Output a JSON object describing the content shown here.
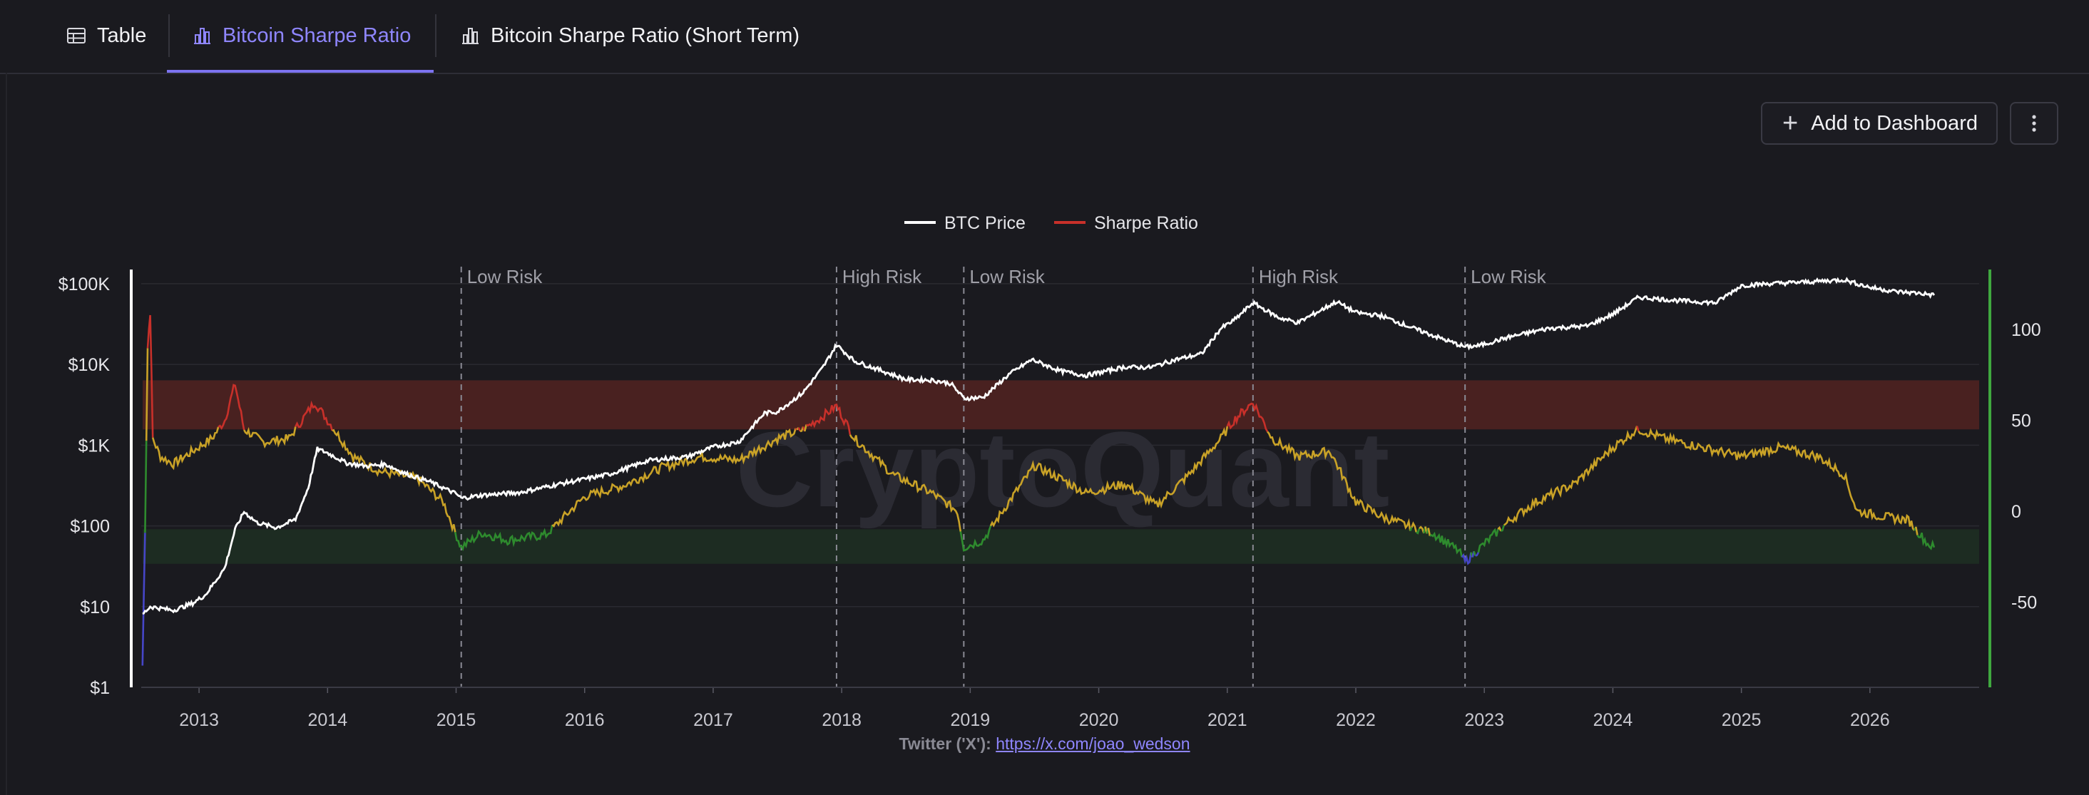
{
  "tabs": [
    {
      "label": "Table",
      "icon": "table-icon"
    },
    {
      "label": "Bitcoin Sharpe Ratio",
      "icon": "bar-chart-icon",
      "active": true
    },
    {
      "label": "Bitcoin Sharpe Ratio (Short Term)",
      "icon": "bar-chart-icon"
    }
  ],
  "toolbar": {
    "add_label": "Add to Dashboard",
    "more_icon": "vertical-ellipsis-icon"
  },
  "footer": {
    "label": "Twitter ('X'):",
    "link": "https://x.com/joao_wedson"
  },
  "watermark": "CryptoQuant",
  "colors": {
    "background": "#1a1a1f",
    "accent": "#7c73f0",
    "price": "#ffffff",
    "sharpe": "#c8302a",
    "sharpe_mid": "#c9a227",
    "sharpe_low": "#2e8b2e",
    "sharpe_very_low": "#4646c8",
    "right_axis": "#3fa83f",
    "high_band": "#5a2421",
    "low_band": "#1f3324"
  },
  "chart_data": {
    "type": "line",
    "legend": [
      {
        "name": "BTC Price",
        "color": "#ffffff"
      },
      {
        "name": "Sharpe Ratio",
        "color": "#c8302a"
      }
    ],
    "legend_position": "top-center",
    "x_ticks": [
      "2013",
      "2014",
      "2015",
      "2016",
      "2017",
      "2018",
      "2019",
      "2020",
      "2021",
      "2022",
      "2023",
      "2024",
      "2025",
      "2026"
    ],
    "x_range": [
      2012.55,
      2026.85
    ],
    "y_left": {
      "scale": "log",
      "range": [
        1,
        150000
      ],
      "ticks": [
        1,
        10,
        100,
        1000,
        10000,
        100000
      ],
      "tick_labels": [
        "$1",
        "$10",
        "$100",
        "$1K",
        "$10K",
        "$100K"
      ]
    },
    "y_right": {
      "range": [
        -97,
        133
      ],
      "ticks": [
        100,
        50,
        0,
        -50
      ],
      "tick_labels": [
        "100",
        "50",
        "0",
        "-50"
      ]
    },
    "bands": [
      {
        "name": "high",
        "from": 45,
        "to": 72
      },
      {
        "name": "low",
        "from": -29,
        "to": -10
      }
    ],
    "annotations": [
      {
        "x": 2015.04,
        "label": "Low Risk"
      },
      {
        "x": 2017.96,
        "label": "High Risk"
      },
      {
        "x": 2018.95,
        "label": "Low Risk"
      },
      {
        "x": 2021.2,
        "label": "High Risk"
      },
      {
        "x": 2022.85,
        "label": "Low Risk"
      }
    ],
    "series": [
      {
        "name": "BTC Price",
        "axis": "left",
        "x": [
          2012.56,
          2012.62,
          2012.8,
          2012.95,
          2013.05,
          2013.2,
          2013.28,
          2013.35,
          2013.45,
          2013.6,
          2013.75,
          2013.85,
          2013.92,
          2014.0,
          2014.15,
          2014.3,
          2014.45,
          2014.6,
          2014.8,
          2015.0,
          2015.04,
          2015.2,
          2015.5,
          2015.8,
          2016.0,
          2016.2,
          2016.5,
          2016.8,
          2017.0,
          2017.2,
          2017.4,
          2017.5,
          2017.7,
          2017.85,
          2017.96,
          2018.1,
          2018.3,
          2018.5,
          2018.7,
          2018.85,
          2018.95,
          2019.1,
          2019.3,
          2019.48,
          2019.7,
          2019.9,
          2020.2,
          2020.4,
          2020.6,
          2020.8,
          2020.95,
          2021.05,
          2021.2,
          2021.4,
          2021.55,
          2021.85,
          2022.0,
          2022.2,
          2022.45,
          2022.7,
          2022.85,
          2022.95,
          2023.2,
          2023.5,
          2023.8,
          2024.0,
          2024.2,
          2024.5,
          2024.8,
          2025.0,
          2025.2,
          2025.5,
          2025.8,
          2026.0,
          2026.2,
          2026.4,
          2026.5
        ],
        "values": [
          8,
          10,
          9,
          11,
          14,
          30,
          90,
          150,
          110,
          95,
          120,
          300,
          900,
          800,
          600,
          550,
          580,
          450,
          350,
          250,
          220,
          240,
          260,
          330,
          380,
          440,
          650,
          720,
          950,
          1100,
          2500,
          2600,
          4500,
          9000,
          17500,
          11000,
          8500,
          6500,
          6400,
          5800,
          3800,
          3900,
          7500,
          11500,
          8300,
          7300,
          9300,
          9200,
          11500,
          13500,
          28000,
          35000,
          58000,
          38000,
          33000,
          60000,
          44000,
          40000,
          28000,
          20000,
          16500,
          17000,
          22000,
          28000,
          30000,
          42000,
          68000,
          62000,
          58000,
          95000,
          100000,
          105000,
          112000,
          90000,
          80000,
          76000,
          72000
        ]
      },
      {
        "name": "Sharpe Ratio",
        "axis": "right",
        "x": [
          2012.56,
          2012.58,
          2012.6,
          2012.62,
          2012.64,
          2012.7,
          2012.8,
          2012.95,
          2013.1,
          2013.2,
          2013.28,
          2013.35,
          2013.5,
          2013.7,
          2013.85,
          2013.9,
          2014.0,
          2014.2,
          2014.4,
          2014.7,
          2014.9,
          2015.04,
          2015.2,
          2015.4,
          2015.7,
          2016.0,
          2016.3,
          2016.6,
          2016.9,
          2017.2,
          2017.5,
          2017.7,
          2017.85,
          2017.96,
          2018.1,
          2018.4,
          2018.7,
          2018.9,
          2018.95,
          2019.1,
          2019.3,
          2019.5,
          2019.7,
          2019.9,
          2020.2,
          2020.45,
          2020.7,
          2020.95,
          2021.05,
          2021.2,
          2021.35,
          2021.55,
          2021.8,
          2022.0,
          2022.2,
          2022.4,
          2022.6,
          2022.8,
          2022.85,
          2023.0,
          2023.2,
          2023.4,
          2023.7,
          2024.0,
          2024.15,
          2024.2,
          2024.4,
          2024.7,
          2025.0,
          2025.3,
          2025.6,
          2025.8,
          2025.9,
          2026.1,
          2026.3,
          2026.45,
          2026.5
        ],
        "values": [
          -85,
          -10,
          90,
          110,
          40,
          30,
          26,
          33,
          40,
          50,
          70,
          45,
          38,
          40,
          55,
          60,
          50,
          30,
          22,
          18,
          5,
          -20,
          -12,
          -16,
          -13,
          8,
          14,
          24,
          30,
          28,
          40,
          45,
          52,
          58,
          40,
          20,
          10,
          0,
          -20,
          -16,
          5,
          25,
          18,
          10,
          15,
          3,
          20,
          40,
          50,
          60,
          40,
          30,
          33,
          5,
          -3,
          -8,
          -12,
          -22,
          -28,
          -18,
          -5,
          5,
          15,
          35,
          43,
          45,
          40,
          35,
          30,
          35,
          30,
          20,
          0,
          -3,
          -5,
          -18,
          -20
        ]
      }
    ]
  }
}
